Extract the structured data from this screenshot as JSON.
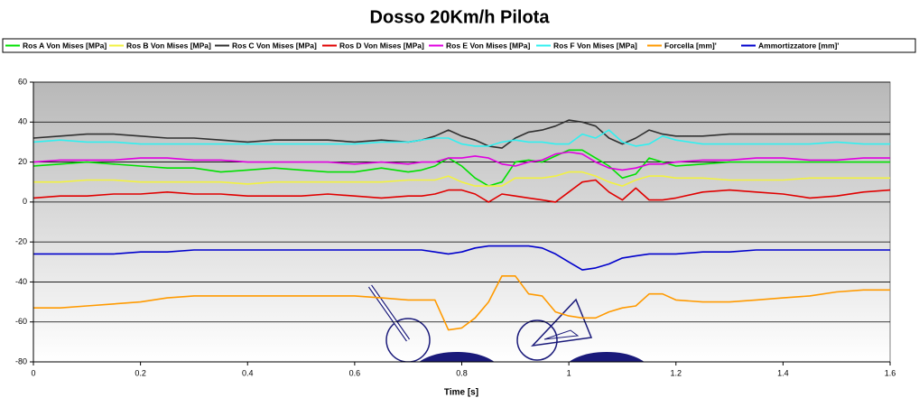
{
  "chart_data": {
    "type": "line",
    "title": "Dosso 20Km/h Pilota",
    "x_label": "Time [s]",
    "x": [
      0,
      0.05,
      0.1,
      0.15,
      0.2,
      0.25,
      0.3,
      0.35,
      0.4,
      0.45,
      0.5,
      0.55,
      0.6,
      0.65,
      0.7,
      0.725,
      0.75,
      0.775,
      0.8,
      0.825,
      0.85,
      0.875,
      0.9,
      0.925,
      0.95,
      0.975,
      1.0,
      1.025,
      1.05,
      1.075,
      1.1,
      1.125,
      1.15,
      1.175,
      1.2,
      1.25,
      1.3,
      1.35,
      1.4,
      1.45,
      1.5,
      1.55,
      1.6
    ],
    "series": [
      {
        "name": "Ros A Von Mises [MPa]",
        "color": "#00e000",
        "values": [
          18,
          19,
          20,
          19,
          18,
          17,
          17,
          15,
          16,
          17,
          16,
          15,
          15,
          17,
          15,
          16,
          18,
          22,
          18,
          12,
          8,
          10,
          20,
          21,
          20,
          23,
          26,
          26,
          22,
          18,
          12,
          14,
          22,
          20,
          18,
          19,
          20,
          20,
          20,
          20,
          20,
          20,
          20
        ]
      },
      {
        "name": "Ros B Von Mises [MPa]",
        "color": "#f2f240",
        "values": [
          10,
          10,
          11,
          11,
          10,
          10,
          10,
          10,
          9,
          10,
          10,
          10,
          10,
          10,
          11,
          11,
          11,
          13,
          10,
          8,
          8,
          8,
          12,
          12,
          12,
          13,
          15,
          15,
          13,
          10,
          8,
          11,
          13,
          13,
          12,
          12,
          11,
          11,
          11,
          12,
          12,
          12,
          12
        ]
      },
      {
        "name": "Ros C Von Mises [MPa]",
        "color": "#303030",
        "values": [
          32,
          33,
          34,
          34,
          33,
          32,
          32,
          31,
          30,
          31,
          31,
          31,
          30,
          31,
          30,
          31,
          33,
          36,
          33,
          31,
          28,
          27,
          32,
          35,
          36,
          38,
          41,
          40,
          38,
          32,
          29,
          32,
          36,
          34,
          33,
          33,
          34,
          34,
          34,
          34,
          34,
          34,
          34
        ]
      },
      {
        "name": "Ros D Von Mises [MPa]",
        "color": "#e00000",
        "values": [
          2,
          3,
          3,
          4,
          4,
          5,
          4,
          4,
          3,
          3,
          3,
          4,
          3,
          2,
          3,
          3,
          4,
          6,
          6,
          4,
          0,
          4,
          3,
          2,
          1,
          0,
          5,
          10,
          11,
          5,
          1,
          7,
          1,
          1,
          2,
          5,
          6,
          5,
          4,
          2,
          3,
          5,
          6
        ]
      },
      {
        "name": "Ros E Von Mises [MPa]",
        "color": "#e000e0",
        "values": [
          20,
          21,
          21,
          21,
          22,
          22,
          21,
          21,
          20,
          20,
          20,
          20,
          19,
          20,
          19,
          20,
          20,
          22,
          22,
          23,
          22,
          19,
          18,
          20,
          21,
          24,
          25,
          24,
          20,
          17,
          16,
          17,
          19,
          19,
          20,
          21,
          21,
          22,
          22,
          21,
          21,
          22,
          22
        ]
      },
      {
        "name": "Ros F Von Mises [MPa]",
        "color": "#30f0f0",
        "values": [
          30,
          31,
          30,
          30,
          29,
          29,
          29,
          29,
          29,
          29,
          29,
          29,
          29,
          30,
          30,
          31,
          32,
          32,
          29,
          28,
          28,
          30,
          31,
          30,
          30,
          29,
          29,
          34,
          32,
          36,
          30,
          28,
          29,
          33,
          31,
          29,
          29,
          29,
          29,
          29,
          30,
          29,
          29
        ]
      },
      {
        "name": "Forcella [mm]'",
        "color": "#ff9a00",
        "values": [
          -53,
          -53,
          -52,
          -51,
          -50,
          -48,
          -47,
          -47,
          -47,
          -47,
          -47,
          -47,
          -47,
          -48,
          -49,
          -49,
          -49,
          -64,
          -63,
          -58,
          -50,
          -37,
          -37,
          -46,
          -47,
          -55,
          -57,
          -58,
          -58,
          -55,
          -53,
          -52,
          -46,
          -46,
          -49,
          -50,
          -50,
          -49,
          -48,
          -47,
          -45,
          -44,
          -44
        ]
      },
      {
        "name": "Ammortizzatore [mm]'",
        "color": "#0000cc",
        "values": [
          -26,
          -26,
          -26,
          -26,
          -25,
          -25,
          -24,
          -24,
          -24,
          -24,
          -24,
          -24,
          -24,
          -24,
          -24,
          -24,
          -25,
          -26,
          -25,
          -23,
          -22,
          -22,
          -22,
          -22,
          -23,
          -26,
          -30,
          -34,
          -33,
          -31,
          -28,
          -27,
          -26,
          -26,
          -26,
          -25,
          -25,
          -24,
          -24,
          -24,
          -24,
          -24,
          -24
        ]
      }
    ],
    "xlim": [
      0,
      1.6
    ],
    "xticks": [
      0,
      0.2,
      0.4,
      0.6,
      0.8,
      1,
      1.2,
      1.4,
      1.6
    ],
    "ylim": [
      -80,
      60
    ],
    "yticks": [
      -80,
      -60,
      -40,
      -20,
      0,
      20,
      40,
      60
    ],
    "grid": true,
    "legend": "top"
  }
}
